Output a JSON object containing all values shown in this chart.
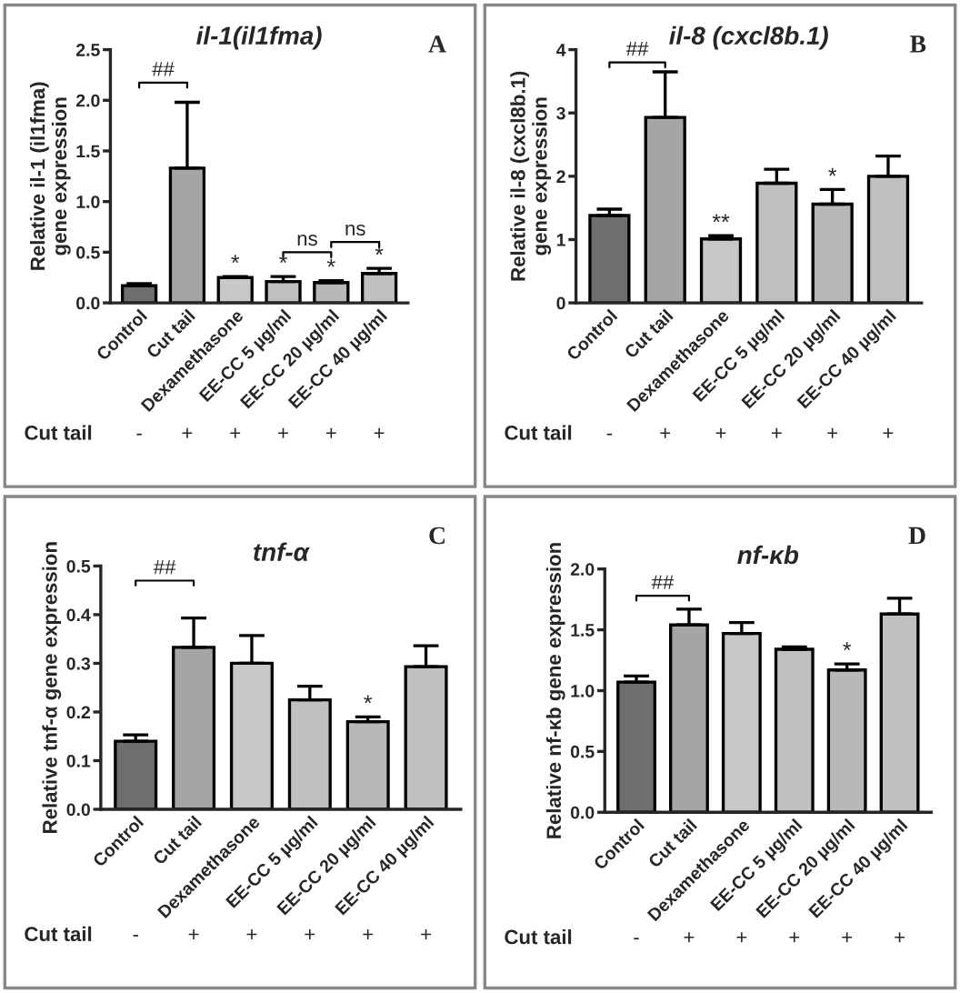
{
  "chart_data": [
    {
      "type": "bar",
      "title": "il-1(il1fma)",
      "ylabel": "Relative il-1 (il1fma)\ngene expression",
      "categories": [
        "Control",
        "Cut tail",
        "Dexamethasone",
        "EE-CC 5 µg/ml",
        "EE-CC 20 µg/ml",
        "EE-CC 40 µg/ml"
      ],
      "values": [
        0.17,
        1.33,
        0.25,
        0.21,
        0.2,
        0.29
      ],
      "errors": [
        0.02,
        0.65,
        0.01,
        0.05,
        0.02,
        0.05
      ],
      "colors": [
        "#6e6e6e",
        "#a5a5a5",
        "#c8c8c8",
        "#c0c0c0",
        "#b8b8b8",
        "#c0c0c0"
      ],
      "value_labels": [
        null,
        null,
        "*",
        "*",
        "*",
        "*"
      ],
      "ylim": [
        0,
        2.5
      ],
      "yticks": [
        {
          "value": 0,
          "label": "0.0"
        },
        {
          "value": 0.5,
          "label": "0.5"
        },
        {
          "value": 1,
          "label": "1.0"
        },
        {
          "value": 1.5,
          "label": "1.5"
        },
        {
          "value": 2,
          "label": "2.0"
        },
        {
          "value": 2.5,
          "label": "2.5"
        }
      ],
      "annotations": [
        "A",
        "Cut tail",
        "-",
        "+",
        "+",
        "+",
        "+",
        "+",
        "##",
        "ns",
        "ns"
      ],
      "grid": false,
      "legend": false
    },
    {
      "type": "bar",
      "title": "il-8 (cxcl8b.1)",
      "ylabel": "Relative il-8 (cxcl8b.1)\ngene expression",
      "categories": [
        "Control",
        "Cut tail",
        "Dexamethasone",
        "EE-CC 5 µg/ml",
        "EE-CC 20 µg/ml",
        "EE-CC 40 µg/ml"
      ],
      "values": [
        1.38,
        2.93,
        1.01,
        1.89,
        1.56,
        2.0
      ],
      "errors": [
        0.1,
        0.72,
        0.05,
        0.22,
        0.23,
        0.32
      ],
      "colors": [
        "#6e6e6e",
        "#a5a5a5",
        "#c8c8c8",
        "#c0c0c0",
        "#b8b8b8",
        "#c0c0c0"
      ],
      "value_labels": [
        null,
        null,
        "**",
        null,
        "*",
        null
      ],
      "ylim": [
        0,
        4
      ],
      "yticks": [
        0,
        1,
        2,
        3,
        4
      ],
      "annotations": [
        "B",
        "Cut tail",
        "-",
        "+",
        "+",
        "+",
        "+",
        "+",
        "##"
      ],
      "grid": false,
      "legend": false
    },
    {
      "type": "bar",
      "title": "tnf-α",
      "ylabel": "Relative tnf-α gene expression",
      "categories": [
        "Control",
        "Cut tail",
        "Dexamethasone",
        "EE-CC 5 µg/ml",
        "EE-CC 20 µg/ml",
        "EE-CC 40 µg/ml"
      ],
      "values": [
        0.14,
        0.333,
        0.3,
        0.225,
        0.18,
        0.293
      ],
      "errors": [
        0.013,
        0.06,
        0.057,
        0.028,
        0.01,
        0.043
      ],
      "colors": [
        "#6e6e6e",
        "#a5a5a5",
        "#c8c8c8",
        "#c0c0c0",
        "#b8b8b8",
        "#c0c0c0"
      ],
      "value_labels": [
        null,
        null,
        null,
        null,
        "*",
        null
      ],
      "ylim": [
        0,
        0.5
      ],
      "yticks": [
        {
          "value": 0,
          "label": "0.0"
        },
        0.1,
        0.2,
        0.3,
        0.4,
        0.5
      ],
      "annotations": [
        "C",
        "Cut tail",
        "-",
        "+",
        "+",
        "+",
        "+",
        "+",
        "##"
      ],
      "grid": false,
      "legend": false
    },
    {
      "type": "bar",
      "title": "nf-κb",
      "ylabel": "Relative nf-κb gene expression",
      "categories": [
        "Control",
        "Cut tail",
        "Dexamethasone",
        "EE-CC 5 µg/ml",
        "EE-CC 20 µg/ml",
        "EE-CC 40 µg/ml"
      ],
      "values": [
        1.07,
        1.54,
        1.47,
        1.34,
        1.17,
        1.63
      ],
      "errors": [
        0.05,
        0.13,
        0.09,
        0.02,
        0.05,
        0.13
      ],
      "colors": [
        "#6e6e6e",
        "#a5a5a5",
        "#c8c8c8",
        "#c0c0c0",
        "#b8b8b8",
        "#c0c0c0"
      ],
      "value_labels": [
        null,
        null,
        null,
        null,
        "*",
        null
      ],
      "ylim": [
        0,
        2.0
      ],
      "yticks": [
        {
          "value": 0,
          "label": "0.0"
        },
        {
          "value": 0.5,
          "label": "0.5"
        },
        {
          "value": 1,
          "label": "1.0"
        },
        {
          "value": 1.5,
          "label": "1.5"
        },
        {
          "value": 2,
          "label": "2.0"
        }
      ],
      "annotations": [
        "D",
        "Cut tail",
        "-",
        "+",
        "+",
        "+",
        "+",
        "+",
        "##"
      ],
      "grid": false,
      "legend": false
    }
  ]
}
